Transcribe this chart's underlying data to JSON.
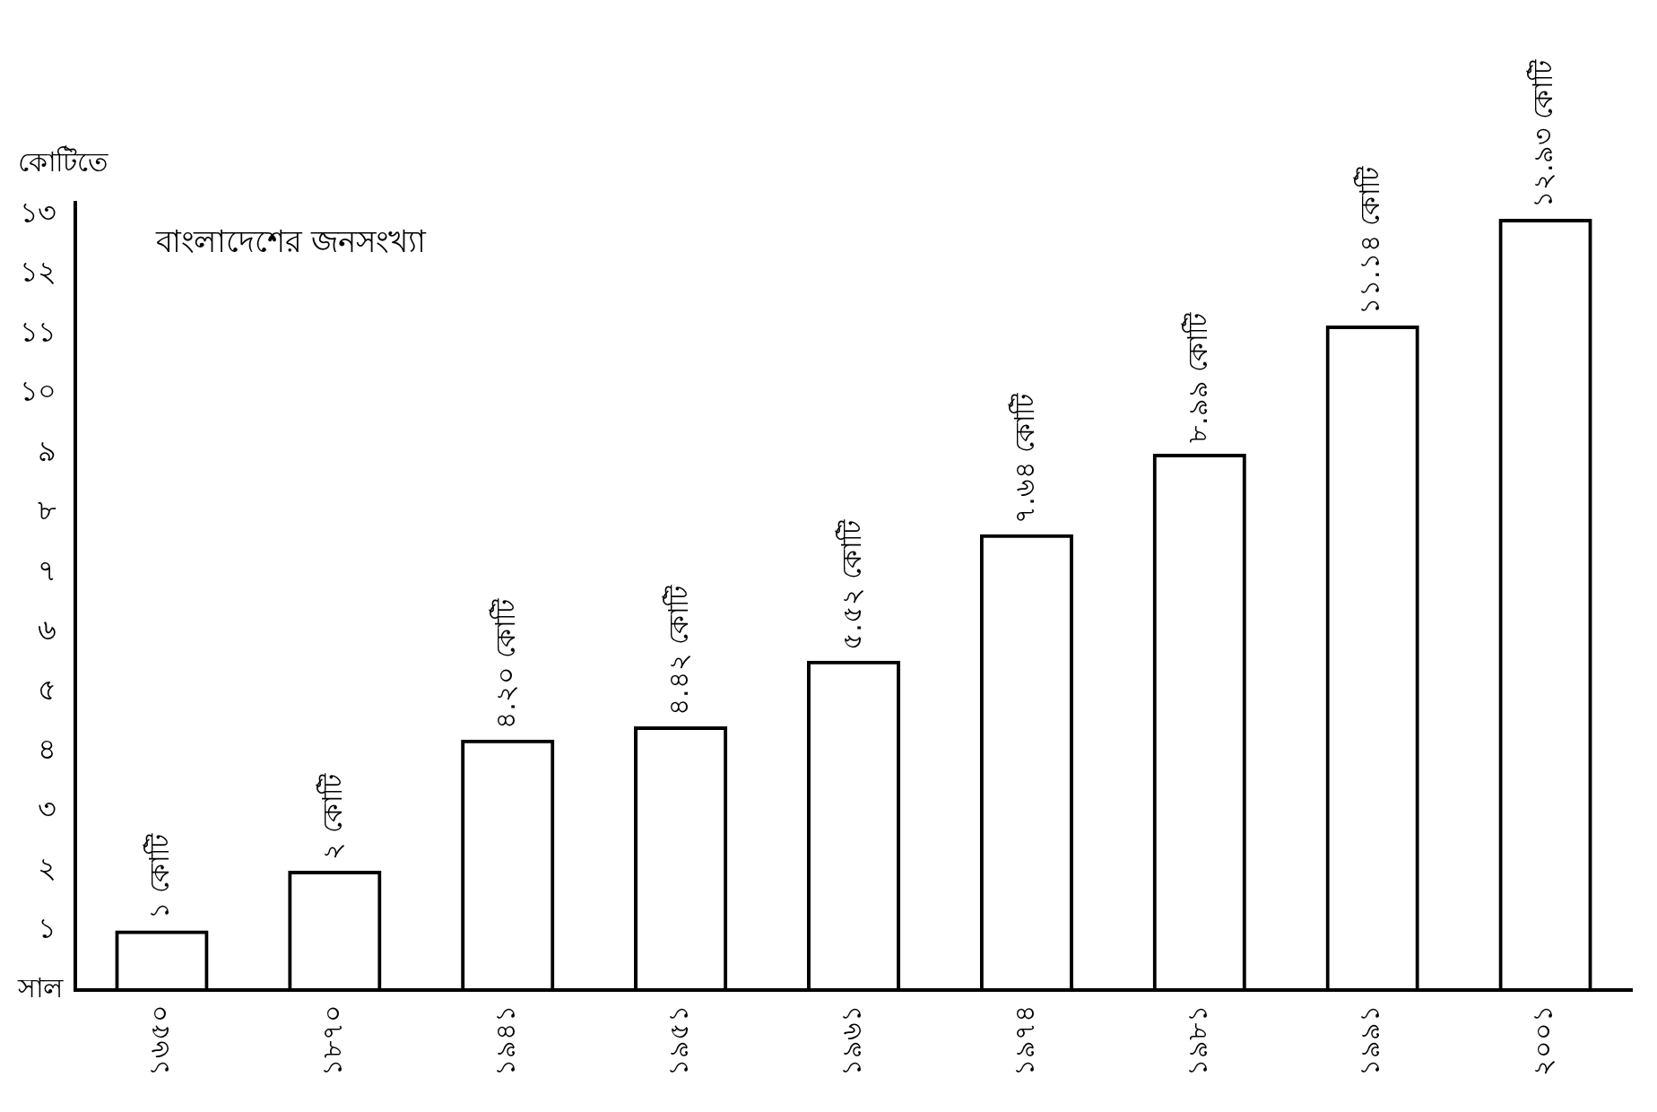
{
  "chart_data": {
    "type": "bar",
    "title": "বাংলাদেশের জনসংখ্যা",
    "ylabel": "কোটিতে",
    "xlabel": "সাল",
    "categories": [
      "১৬৫০",
      "১৮৭০",
      "১৯৪১",
      "১৯৫১",
      "১৯৬১",
      "১৯৭৪",
      "১৯৮১",
      "১৯৯১",
      "২০০১"
    ],
    "values": [
      1,
      2,
      4.2,
      4.42,
      5.52,
      7.64,
      8.99,
      11.14,
      12.93
    ],
    "value_labels": [
      "১ কোটি",
      "২ কোটি",
      "৪.২০ কোটি",
      "৪.৪২ কোটি",
      "৫.৫২ কোটি",
      "৭.৬৪ কোটি",
      "৮.৯৯ কোটি",
      "১১.১৪ কোটি",
      "১২.৯৩ কোটি"
    ],
    "color": "#000000",
    "ylim": [
      0,
      13.2
    ],
    "yticks": [
      {
        "value": 1,
        "label": "১"
      },
      {
        "value": 2,
        "label": "২"
      },
      {
        "value": 3,
        "label": "৩"
      },
      {
        "value": 4,
        "label": "৪"
      },
      {
        "value": 5,
        "label": "৫"
      },
      {
        "value": 6,
        "label": "৬"
      },
      {
        "value": 7,
        "label": "৭"
      },
      {
        "value": 8,
        "label": "৮"
      },
      {
        "value": 9,
        "label": "৯"
      },
      {
        "value": 10,
        "label": "১০"
      },
      {
        "value": 11,
        "label": "১১"
      },
      {
        "value": 12,
        "label": "১২"
      },
      {
        "value": 13,
        "label": "১৩"
      }
    ],
    "grid": false,
    "legend": false
  }
}
